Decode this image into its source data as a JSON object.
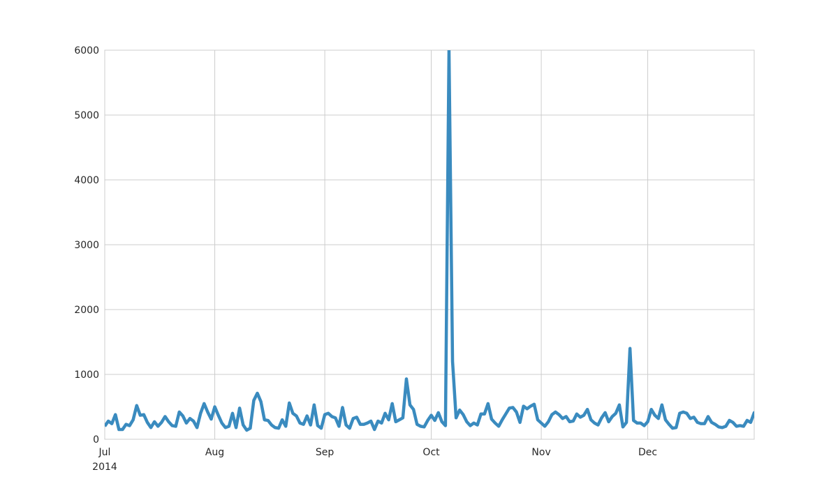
{
  "chart_data": {
    "type": "line",
    "title": "",
    "xlabel": "",
    "ylabel": "",
    "x_start": "2014-07-01",
    "x_end": "2014-12-31",
    "ylim": [
      0,
      6000
    ],
    "y_ticks": [
      0,
      1000,
      2000,
      3000,
      4000,
      5000,
      6000
    ],
    "x_ticks": [
      {
        "date": "2014-07-01",
        "label": "Jul",
        "sublabel": "2014"
      },
      {
        "date": "2014-08-01",
        "label": "Aug",
        "sublabel": ""
      },
      {
        "date": "2014-09-01",
        "label": "Sep",
        "sublabel": ""
      },
      {
        "date": "2014-10-01",
        "label": "Oct",
        "sublabel": ""
      },
      {
        "date": "2014-11-01",
        "label": "Nov",
        "sublabel": ""
      },
      {
        "date": "2014-12-01",
        "label": "Dec",
        "sublabel": ""
      }
    ],
    "grid": true,
    "series": [
      {
        "color": "#3a8bbf",
        "points": [
          [
            "2014-07-01",
            200
          ],
          [
            "2014-07-02",
            280
          ],
          [
            "2014-07-03",
            240
          ],
          [
            "2014-07-04",
            380
          ],
          [
            "2014-07-05",
            150
          ],
          [
            "2014-07-06",
            150
          ],
          [
            "2014-07-07",
            230
          ],
          [
            "2014-07-08",
            210
          ],
          [
            "2014-07-09",
            300
          ],
          [
            "2014-07-10",
            520
          ],
          [
            "2014-07-11",
            370
          ],
          [
            "2014-07-12",
            380
          ],
          [
            "2014-07-13",
            260
          ],
          [
            "2014-07-14",
            180
          ],
          [
            "2014-07-15",
            270
          ],
          [
            "2014-07-16",
            200
          ],
          [
            "2014-07-17",
            260
          ],
          [
            "2014-07-18",
            350
          ],
          [
            "2014-07-19",
            270
          ],
          [
            "2014-07-20",
            210
          ],
          [
            "2014-07-21",
            200
          ],
          [
            "2014-07-22",
            420
          ],
          [
            "2014-07-23",
            360
          ],
          [
            "2014-07-24",
            250
          ],
          [
            "2014-07-25",
            320
          ],
          [
            "2014-07-26",
            280
          ],
          [
            "2014-07-27",
            180
          ],
          [
            "2014-07-28",
            400
          ],
          [
            "2014-07-29",
            550
          ],
          [
            "2014-07-30",
            420
          ],
          [
            "2014-07-31",
            310
          ],
          [
            "2014-08-01",
            500
          ],
          [
            "2014-08-02",
            370
          ],
          [
            "2014-08-03",
            250
          ],
          [
            "2014-08-04",
            180
          ],
          [
            "2014-08-05",
            200
          ],
          [
            "2014-08-06",
            400
          ],
          [
            "2014-08-07",
            180
          ],
          [
            "2014-08-08",
            480
          ],
          [
            "2014-08-09",
            220
          ],
          [
            "2014-08-10",
            140
          ],
          [
            "2014-08-11",
            170
          ],
          [
            "2014-08-12",
            600
          ],
          [
            "2014-08-13",
            710
          ],
          [
            "2014-08-14",
            580
          ],
          [
            "2014-08-15",
            300
          ],
          [
            "2014-08-16",
            290
          ],
          [
            "2014-08-17",
            220
          ],
          [
            "2014-08-18",
            180
          ],
          [
            "2014-08-19",
            170
          ],
          [
            "2014-08-20",
            300
          ],
          [
            "2014-08-21",
            200
          ],
          [
            "2014-08-22",
            560
          ],
          [
            "2014-08-23",
            400
          ],
          [
            "2014-08-24",
            360
          ],
          [
            "2014-08-25",
            250
          ],
          [
            "2014-08-26",
            230
          ],
          [
            "2014-08-27",
            360
          ],
          [
            "2014-08-28",
            220
          ],
          [
            "2014-08-29",
            530
          ],
          [
            "2014-08-30",
            210
          ],
          [
            "2014-08-31",
            170
          ],
          [
            "2014-09-01",
            380
          ],
          [
            "2014-09-02",
            400
          ],
          [
            "2014-09-03",
            350
          ],
          [
            "2014-09-04",
            330
          ],
          [
            "2014-09-05",
            200
          ],
          [
            "2014-09-06",
            490
          ],
          [
            "2014-09-07",
            220
          ],
          [
            "2014-09-08",
            170
          ],
          [
            "2014-09-09",
            320
          ],
          [
            "2014-09-10",
            340
          ],
          [
            "2014-09-11",
            230
          ],
          [
            "2014-09-12",
            230
          ],
          [
            "2014-09-13",
            250
          ],
          [
            "2014-09-14",
            280
          ],
          [
            "2014-09-15",
            150
          ],
          [
            "2014-09-16",
            280
          ],
          [
            "2014-09-17",
            250
          ],
          [
            "2014-09-18",
            400
          ],
          [
            "2014-09-19",
            300
          ],
          [
            "2014-09-20",
            550
          ],
          [
            "2014-09-21",
            270
          ],
          [
            "2014-09-22",
            300
          ],
          [
            "2014-09-23",
            330
          ],
          [
            "2014-09-24",
            930
          ],
          [
            "2014-09-25",
            530
          ],
          [
            "2014-09-26",
            460
          ],
          [
            "2014-09-27",
            230
          ],
          [
            "2014-09-28",
            200
          ],
          [
            "2014-09-29",
            190
          ],
          [
            "2014-09-30",
            290
          ],
          [
            "2014-10-01",
            370
          ],
          [
            "2014-10-02",
            290
          ],
          [
            "2014-10-03",
            410
          ],
          [
            "2014-10-04",
            270
          ],
          [
            "2014-10-05",
            210
          ],
          [
            "2014-10-06",
            6000
          ],
          [
            "2014-10-07",
            1200
          ],
          [
            "2014-10-08",
            330
          ],
          [
            "2014-10-09",
            450
          ],
          [
            "2014-10-10",
            380
          ],
          [
            "2014-10-11",
            270
          ],
          [
            "2014-10-12",
            210
          ],
          [
            "2014-10-13",
            250
          ],
          [
            "2014-10-14",
            220
          ],
          [
            "2014-10-15",
            390
          ],
          [
            "2014-10-16",
            390
          ],
          [
            "2014-10-17",
            550
          ],
          [
            "2014-10-18",
            310
          ],
          [
            "2014-10-19",
            250
          ],
          [
            "2014-10-20",
            200
          ],
          [
            "2014-10-21",
            300
          ],
          [
            "2014-10-22",
            390
          ],
          [
            "2014-10-23",
            480
          ],
          [
            "2014-10-24",
            490
          ],
          [
            "2014-10-25",
            420
          ],
          [
            "2014-10-26",
            260
          ],
          [
            "2014-10-27",
            510
          ],
          [
            "2014-10-28",
            470
          ],
          [
            "2014-10-29",
            510
          ],
          [
            "2014-10-30",
            540
          ],
          [
            "2014-10-31",
            300
          ],
          [
            "2014-11-01",
            250
          ],
          [
            "2014-11-02",
            200
          ],
          [
            "2014-11-03",
            270
          ],
          [
            "2014-11-04",
            380
          ],
          [
            "2014-11-05",
            420
          ],
          [
            "2014-11-06",
            380
          ],
          [
            "2014-11-07",
            320
          ],
          [
            "2014-11-08",
            350
          ],
          [
            "2014-11-09",
            270
          ],
          [
            "2014-11-10",
            280
          ],
          [
            "2014-11-11",
            390
          ],
          [
            "2014-11-12",
            340
          ],
          [
            "2014-11-13",
            370
          ],
          [
            "2014-11-14",
            460
          ],
          [
            "2014-11-15",
            300
          ],
          [
            "2014-11-16",
            250
          ],
          [
            "2014-11-17",
            220
          ],
          [
            "2014-11-18",
            330
          ],
          [
            "2014-11-19",
            410
          ],
          [
            "2014-11-20",
            270
          ],
          [
            "2014-11-21",
            350
          ],
          [
            "2014-11-22",
            400
          ],
          [
            "2014-11-23",
            530
          ],
          [
            "2014-11-24",
            190
          ],
          [
            "2014-11-25",
            260
          ],
          [
            "2014-11-26",
            1400
          ],
          [
            "2014-11-27",
            290
          ],
          [
            "2014-11-28",
            250
          ],
          [
            "2014-11-29",
            250
          ],
          [
            "2014-11-30",
            210
          ],
          [
            "2014-12-01",
            270
          ],
          [
            "2014-12-02",
            460
          ],
          [
            "2014-12-03",
            370
          ],
          [
            "2014-12-04",
            320
          ],
          [
            "2014-12-05",
            530
          ],
          [
            "2014-12-06",
            300
          ],
          [
            "2014-12-07",
            230
          ],
          [
            "2014-12-08",
            170
          ],
          [
            "2014-12-09",
            180
          ],
          [
            "2014-12-10",
            400
          ],
          [
            "2014-12-11",
            420
          ],
          [
            "2014-12-12",
            400
          ],
          [
            "2014-12-13",
            320
          ],
          [
            "2014-12-14",
            340
          ],
          [
            "2014-12-15",
            260
          ],
          [
            "2014-12-16",
            240
          ],
          [
            "2014-12-17",
            240
          ],
          [
            "2014-12-18",
            350
          ],
          [
            "2014-12-19",
            260
          ],
          [
            "2014-12-20",
            230
          ],
          [
            "2014-12-21",
            190
          ],
          [
            "2014-12-22",
            180
          ],
          [
            "2014-12-23",
            200
          ],
          [
            "2014-12-24",
            290
          ],
          [
            "2014-12-25",
            260
          ],
          [
            "2014-12-26",
            200
          ],
          [
            "2014-12-27",
            210
          ],
          [
            "2014-12-28",
            200
          ],
          [
            "2014-12-29",
            290
          ],
          [
            "2014-12-30",
            260
          ],
          [
            "2014-12-31",
            410
          ],
          [
            "2015-01-01",
            250
          ]
        ]
      }
    ]
  }
}
